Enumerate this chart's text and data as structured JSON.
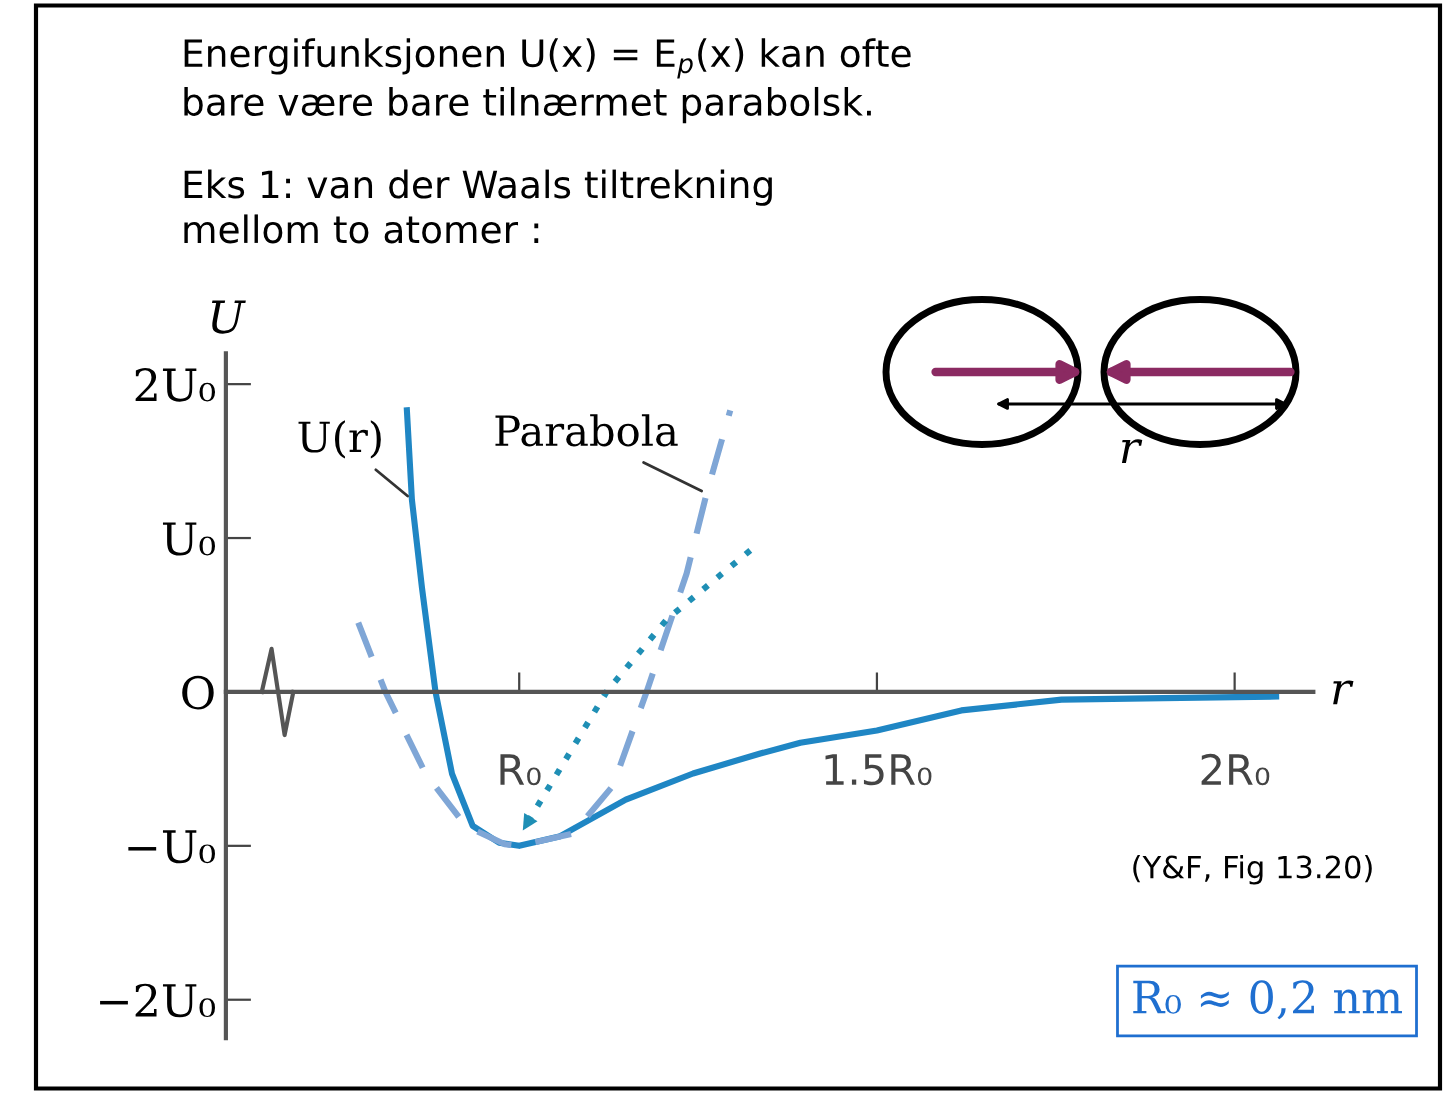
{
  "chart_data": {
    "type": "line",
    "title": "Energifunksjonen U(x) = E$_{p}$(x) kan ofte\nbare være bare tilnærmet parabolsk.",
    "subtitle": "Eks 1: van der Waals tiltrekning\nmellom to atomer :",
    "xlabel": "r",
    "ylabel": "U",
    "xlim": [
      0.59,
      2.11
    ],
    "ylim": [
      -2.25,
      2.2
    ],
    "xticks": [
      {
        "value": 1,
        "label": "R₀"
      },
      {
        "value": 1.5,
        "label": "1.5R₀"
      },
      {
        "value": 2,
        "label": "2R₀"
      }
    ],
    "yticks": [
      {
        "value": 2,
        "label": "2U₀"
      },
      {
        "value": 1,
        "label": "U₀"
      },
      {
        "value": 0,
        "label": "O"
      },
      {
        "value": -1,
        "label": "−U₀"
      },
      {
        "value": -2,
        "label": "−2U₀"
      }
    ],
    "grid": false,
    "legend": false,
    "marker": "none",
    "series": [
      {
        "color": "#1f86c4",
        "line_style": "solid",
        "x": [
          0.843,
          0.85,
          0.864,
          0.883,
          0.906,
          0.935,
          0.972,
          1.0,
          1.056,
          1.149,
          1.243,
          1.337,
          1.393,
          1.5,
          1.618,
          1.758,
          1.9,
          2.058
        ],
        "values": [
          1.83,
          1.25,
          0.68,
          0,
          -0.53,
          -0.87,
          -0.98,
          -1.0,
          -0.94,
          -0.7,
          -0.53,
          -0.4,
          -0.33,
          -0.25,
          -0.12,
          -0.05,
          -0.04,
          -0.03
        ]
      },
      {
        "color": "#7fa6d6",
        "line_style": "dashed",
        "x": [
          0.775,
          0.813,
          0.869,
          0.925,
          0.98,
          1.0,
          1.075,
          1.131,
          1.178,
          1.234,
          1.262,
          1.295
        ],
        "values": [
          0.45,
          0,
          -0.53,
          -0.87,
          -0.99,
          -1.0,
          -0.92,
          -0.61,
          0,
          0.77,
          1.29,
          1.83
        ]
      },
      {
        "color": "#1f8fb5",
        "line_style": "dotted",
        "x": [
          1.323,
          1.206,
          1.122,
          1.005
        ],
        "values": [
          0.92,
          0.47,
          0,
          -0.9
        ]
      }
    ],
    "annotations": [
      {
        "text": "U(r)",
        "x": 0.85,
        "y": 1.25
      },
      {
        "text": "Parabola",
        "x": 1.262,
        "y": 1.29
      },
      "r",
      "(Y&F, Fig 13.20)",
      "R₀ ≈ 0,2 nm"
    ]
  }
}
